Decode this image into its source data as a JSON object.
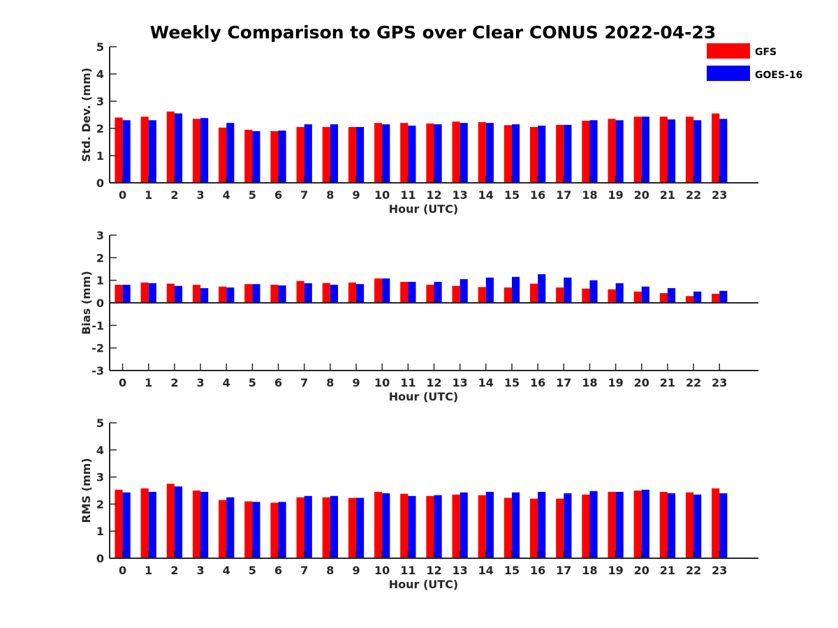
{
  "title": "Weekly Comparison to GPS over Clear CONUS 2022-04-23",
  "colors": {
    "GFS": "#ff0000",
    "GOES-16": "#0000ff",
    "axis": "#262626"
  },
  "legend": {
    "placement": "top-right",
    "entries": [
      "GFS",
      "GOES-16"
    ]
  },
  "chart_data": [
    {
      "type": "bar",
      "categories": [
        "0",
        "1",
        "2",
        "3",
        "4",
        "5",
        "6",
        "7",
        "8",
        "9",
        "10",
        "11",
        "12",
        "13",
        "14",
        "15",
        "16",
        "17",
        "18",
        "19",
        "20",
        "21",
        "22",
        "23"
      ],
      "xlabel": "Hour (UTC)",
      "ylabel": "Std. Dev. (mm)",
      "ylim": [
        0,
        5
      ],
      "yticks": [
        "0",
        "1",
        "2",
        "3",
        "4",
        "5"
      ],
      "series": [
        {
          "name": "GFS",
          "values": [
            2.4,
            2.43,
            2.62,
            2.35,
            2.03,
            1.95,
            1.9,
            2.05,
            2.05,
            2.05,
            2.2,
            2.2,
            2.18,
            2.25,
            2.23,
            2.12,
            2.05,
            2.13,
            2.28,
            2.35,
            2.43,
            2.43,
            2.43,
            2.55
          ]
        },
        {
          "name": "GOES-16",
          "values": [
            2.3,
            2.3,
            2.55,
            2.38,
            2.2,
            1.9,
            1.92,
            2.15,
            2.15,
            2.05,
            2.15,
            2.1,
            2.15,
            2.2,
            2.2,
            2.15,
            2.1,
            2.13,
            2.3,
            2.3,
            2.43,
            2.33,
            2.3,
            2.35
          ]
        }
      ]
    },
    {
      "type": "bar",
      "categories": [
        "0",
        "1",
        "2",
        "3",
        "4",
        "5",
        "6",
        "7",
        "8",
        "9",
        "10",
        "11",
        "12",
        "13",
        "14",
        "15",
        "16",
        "17",
        "18",
        "19",
        "20",
        "21",
        "22",
        "23"
      ],
      "xlabel": "Hour (UTC)",
      "ylabel": "Bias (mm)",
      "ylim": [
        -3,
        3
      ],
      "yticks": [
        "-3",
        "-2",
        "-1",
        "0",
        "1",
        "2",
        "3"
      ],
      "series": [
        {
          "name": "GFS",
          "values": [
            0.8,
            0.9,
            0.85,
            0.8,
            0.72,
            0.83,
            0.8,
            0.97,
            0.88,
            0.9,
            1.08,
            0.93,
            0.8,
            0.75,
            0.7,
            0.68,
            0.85,
            0.68,
            0.63,
            0.6,
            0.5,
            0.43,
            0.3,
            0.4
          ]
        },
        {
          "name": "GOES-16",
          "values": [
            0.8,
            0.87,
            0.75,
            0.65,
            0.68,
            0.83,
            0.77,
            0.87,
            0.8,
            0.83,
            1.08,
            0.93,
            0.93,
            1.05,
            1.12,
            1.15,
            1.27,
            1.12,
            1.0,
            0.87,
            0.72,
            0.65,
            0.5,
            0.53
          ]
        }
      ]
    },
    {
      "type": "bar",
      "categories": [
        "0",
        "1",
        "2",
        "3",
        "4",
        "5",
        "6",
        "7",
        "8",
        "9",
        "10",
        "11",
        "12",
        "13",
        "14",
        "15",
        "16",
        "17",
        "18",
        "19",
        "20",
        "21",
        "22",
        "23"
      ],
      "xlabel": "Hour (UTC)",
      "ylabel": "RMS (mm)",
      "ylim": [
        0,
        5
      ],
      "yticks": [
        "0",
        "1",
        "2",
        "3",
        "4",
        "5"
      ],
      "series": [
        {
          "name": "GFS",
          "values": [
            2.53,
            2.58,
            2.75,
            2.5,
            2.15,
            2.1,
            2.05,
            2.25,
            2.25,
            2.23,
            2.45,
            2.38,
            2.3,
            2.35,
            2.33,
            2.23,
            2.2,
            2.2,
            2.35,
            2.45,
            2.5,
            2.45,
            2.43,
            2.58
          ]
        },
        {
          "name": "GOES-16",
          "values": [
            2.43,
            2.45,
            2.65,
            2.45,
            2.25,
            2.08,
            2.08,
            2.3,
            2.3,
            2.23,
            2.4,
            2.3,
            2.33,
            2.43,
            2.45,
            2.43,
            2.45,
            2.4,
            2.48,
            2.45,
            2.53,
            2.4,
            2.35,
            2.4
          ]
        }
      ]
    }
  ]
}
